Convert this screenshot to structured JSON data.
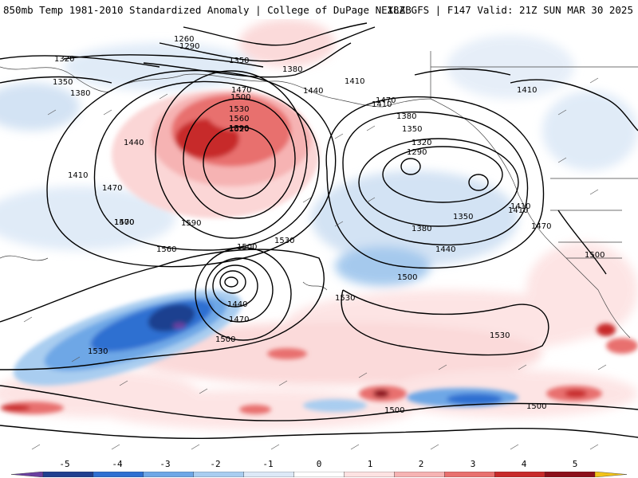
{
  "header": {
    "left_title": "850mb Temp 1981-2010 Standardized Anomaly | College of DuPage NEXLAB",
    "right_title": "18Z GFS | F147 Valid: 21Z SUN MAR 30 2025"
  },
  "contour_labels": [
    "1260",
    "1290",
    "1320",
    "1350",
    "1350",
    "1380",
    "1380",
    "1410",
    "1410",
    "1410",
    "1440",
    "1440",
    "1470",
    "1470",
    "1500",
    "1530",
    "1560",
    "1590",
    "1620",
    "1470",
    "1410",
    "1380",
    "1350",
    "1320",
    "1290",
    "1380",
    "1350",
    "1410",
    "1440",
    "1500",
    "1470",
    "1500",
    "1530",
    "1500",
    "1470",
    "1440",
    "1500",
    "1530",
    "1530",
    "1530",
    "1500",
    "1500",
    "1410",
    "1470",
    "1500",
    "1590",
    "1560"
  ],
  "colorbar": {
    "labels": [
      "-5",
      "-4",
      "-3",
      "-2",
      "-1",
      "0",
      "1",
      "2",
      "3",
      "4",
      "5"
    ],
    "colors": [
      "#6a3fa0",
      "#1f3f8f",
      "#2e6fd1",
      "#6ea7e6",
      "#a9cdf0",
      "#dde9f7",
      "#ffffff",
      "#fde2e2",
      "#f6b3b3",
      "#e8706e",
      "#c72a2a",
      "#8b0f1a",
      "#f2c319"
    ]
  }
}
